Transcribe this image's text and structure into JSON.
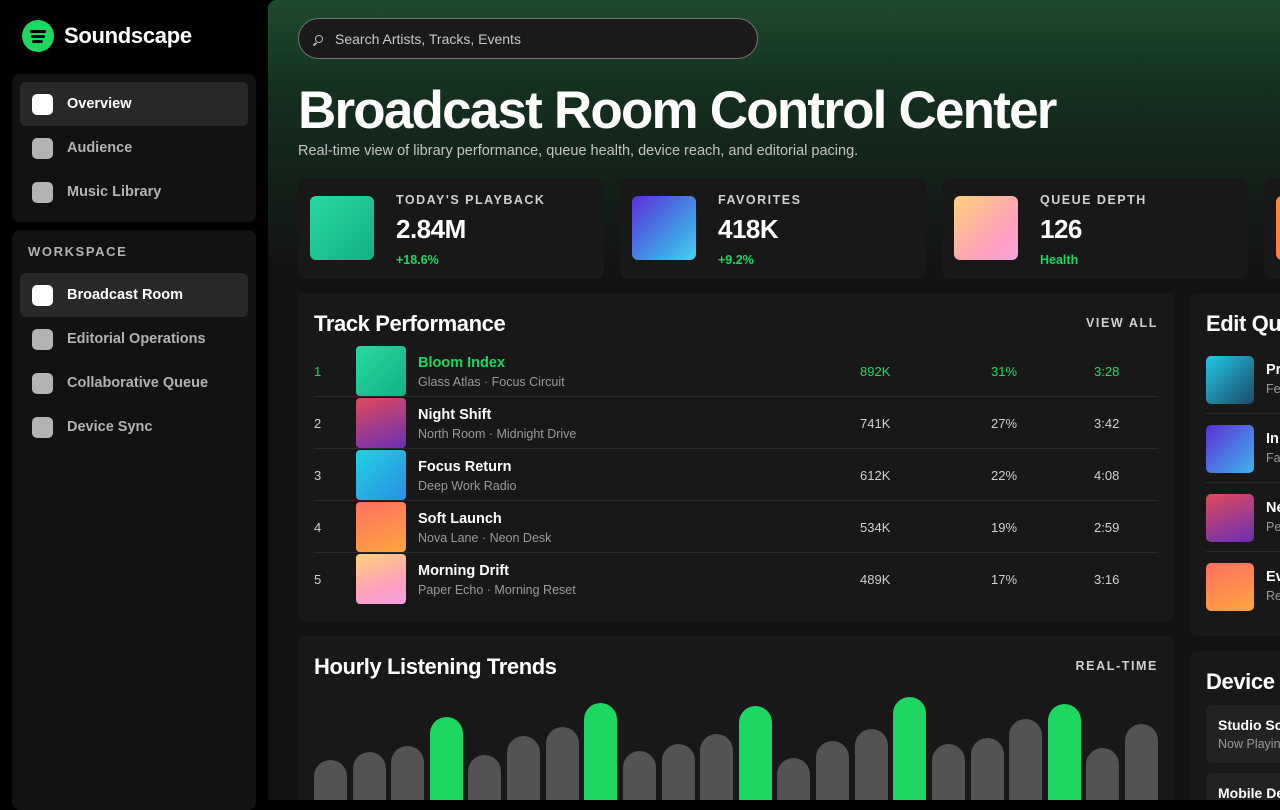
{
  "app": {
    "name": "Soundscape",
    "accent": "#1ed760"
  },
  "nav": {
    "primary": [
      {
        "label": "Overview",
        "active": true
      },
      {
        "label": "Audience",
        "active": false
      },
      {
        "label": "Music Library",
        "active": false
      }
    ],
    "workspace_title": "WORKSPACE",
    "workspace": [
      {
        "label": "Broadcast Room",
        "active": true
      },
      {
        "label": "Editorial Operations",
        "active": false
      },
      {
        "label": "Collaborative Queue",
        "active": false
      },
      {
        "label": "Device Sync",
        "active": false
      }
    ]
  },
  "search": {
    "placeholder": "Search Artists, Tracks, Events",
    "value": ""
  },
  "header": {
    "title": "Broadcast Room Control Center",
    "subtitle": "Real-time view of library performance, queue health, device reach, and editorial pacing."
  },
  "stats": [
    {
      "label": "TODAY'S PLAYBACK",
      "value": "2.84M",
      "delta": "+18.6%"
    },
    {
      "label": "FAVORITES",
      "value": "418K",
      "delta": "+9.2%"
    },
    {
      "label": "QUEUE DEPTH",
      "value": "126",
      "delta": "Health"
    }
  ],
  "track_performance": {
    "title": "Track Performance",
    "action": "VIEW ALL",
    "rows": [
      {
        "rank": "1",
        "name": "Bloom Index",
        "artist": "Glass Atlas · Focus Circuit",
        "plays": "892K",
        "share": "31%",
        "duration": "3:28"
      },
      {
        "rank": "2",
        "name": "Night Shift",
        "artist": "North Room · Midnight Drive",
        "plays": "741K",
        "share": "27%",
        "duration": "3:42"
      },
      {
        "rank": "3",
        "name": "Focus Return",
        "artist": "Deep Work Radio",
        "plays": "612K",
        "share": "22%",
        "duration": "4:08"
      },
      {
        "rank": "4",
        "name": "Soft Launch",
        "artist": "Nova Lane · Neon Desk",
        "plays": "534K",
        "share": "19%",
        "duration": "2:59"
      },
      {
        "rank": "5",
        "name": "Morning Drift",
        "artist": "Paper Echo · Morning Reset",
        "plays": "489K",
        "share": "17%",
        "duration": "3:16"
      }
    ]
  },
  "trends": {
    "title": "Hourly Listening Trends",
    "action": "REAL-TIME",
    "bars": [
      {
        "level": 0.38,
        "peak": false
      },
      {
        "level": 0.45,
        "peak": false
      },
      {
        "level": 0.51,
        "peak": false
      },
      {
        "level": 0.77,
        "peak": true
      },
      {
        "level": 0.43,
        "peak": false
      },
      {
        "level": 0.6,
        "peak": false
      },
      {
        "level": 0.68,
        "peak": false
      },
      {
        "level": 0.9,
        "peak": true
      },
      {
        "level": 0.46,
        "peak": false
      },
      {
        "level": 0.53,
        "peak": false
      },
      {
        "level": 0.62,
        "peak": false
      },
      {
        "level": 0.87,
        "peak": true
      },
      {
        "level": 0.4,
        "peak": false
      },
      {
        "level": 0.55,
        "peak": false
      },
      {
        "level": 0.66,
        "peak": false
      },
      {
        "level": 0.95,
        "peak": true
      },
      {
        "level": 0.53,
        "peak": false
      },
      {
        "level": 0.58,
        "peak": false
      },
      {
        "level": 0.75,
        "peak": false
      },
      {
        "level": 0.89,
        "peak": true
      },
      {
        "level": 0.49,
        "peak": false
      },
      {
        "level": 0.71,
        "peak": false
      }
    ]
  },
  "edit_queue": {
    "title": "Edit Qu",
    "items": [
      {
        "name": "Pr",
        "sub": "Fe"
      },
      {
        "name": "In",
        "sub": "Fa"
      },
      {
        "name": "Ne",
        "sub": "Pe"
      },
      {
        "name": "Ev",
        "sub": "Re"
      }
    ]
  },
  "devices": {
    "title": "Device",
    "items": [
      {
        "name": "Studio Sc",
        "status": "Now Playing"
      },
      {
        "name": "Mobile De",
        "status": ""
      }
    ]
  }
}
